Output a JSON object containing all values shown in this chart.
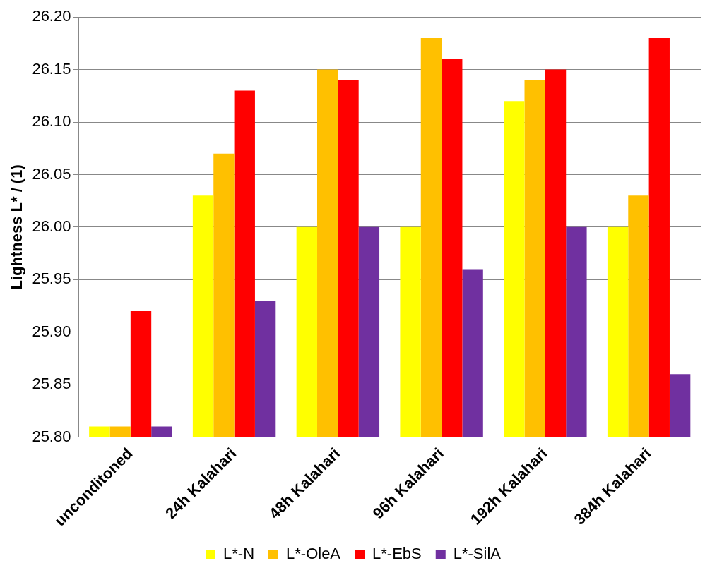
{
  "chart_data": {
    "type": "bar",
    "ylabel": "Lightness L* / (1)",
    "categories": [
      "unconditoned",
      "24h Kalahari",
      "48h Kalahari",
      "96h Kalahari",
      "192h Kalahari",
      "384h Kalahari"
    ],
    "series": [
      {
        "name": "L*-N",
        "color": "#ffff00",
        "values": [
          25.81,
          26.03,
          26.0,
          26.0,
          26.12,
          26.0
        ]
      },
      {
        "name": "L*-OleA",
        "color": "#ffc000",
        "values": [
          25.81,
          26.07,
          26.15,
          26.18,
          26.14,
          26.03
        ]
      },
      {
        "name": "L*-EbS",
        "color": "#ff0000",
        "values": [
          25.92,
          26.13,
          26.14,
          26.16,
          26.15,
          26.18
        ]
      },
      {
        "name": "L*-SilA",
        "color": "#7030a0",
        "values": [
          25.81,
          25.93,
          26.0,
          25.96,
          26.0,
          25.86
        ]
      }
    ],
    "ylim": [
      25.8,
      26.2
    ],
    "yticks": [
      {
        "value": 25.8,
        "label": "25.80"
      },
      {
        "value": 25.85,
        "label": "25.85"
      },
      {
        "value": 25.9,
        "label": "25.90"
      },
      {
        "value": 25.95,
        "label": "25.95"
      },
      {
        "value": 26.0,
        "label": "26.00"
      },
      {
        "value": 26.05,
        "label": "26.05"
      },
      {
        "value": 26.1,
        "label": "26.10"
      },
      {
        "value": 26.15,
        "label": "26.15"
      },
      {
        "value": 26.2,
        "label": "26.20"
      }
    ],
    "grid": "y",
    "legend": "bottom"
  }
}
